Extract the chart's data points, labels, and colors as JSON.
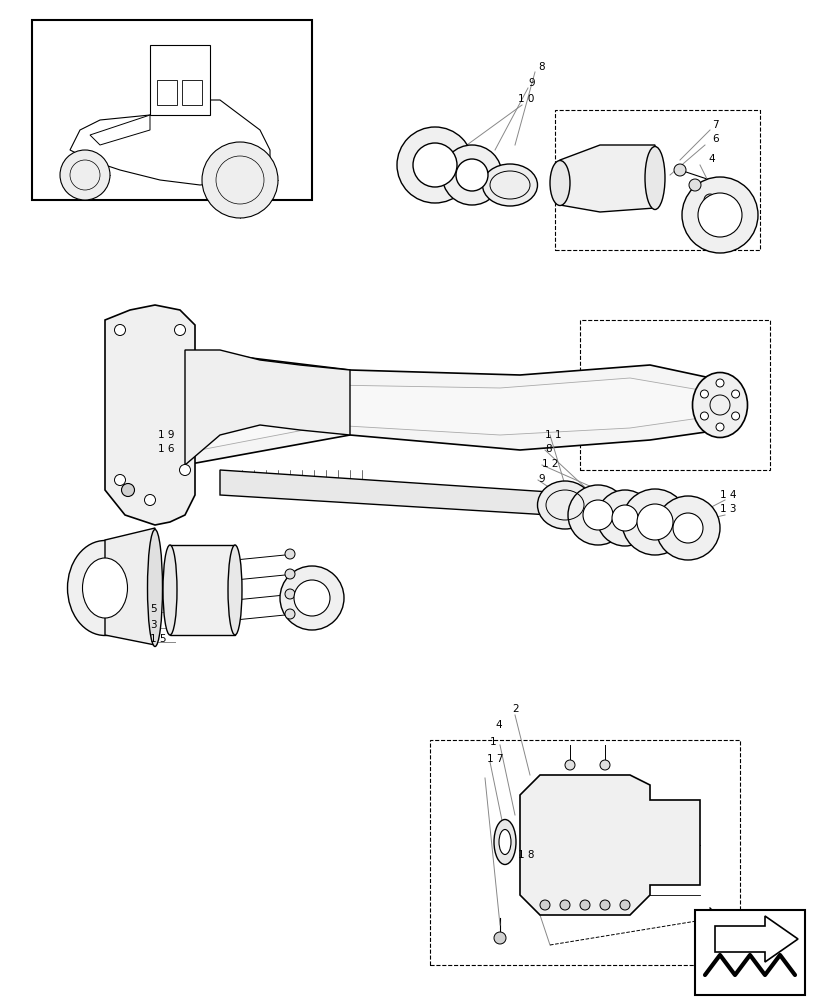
{
  "bg_color": "#ffffff",
  "line_color": "#000000",
  "light_gray": "#aaaaaa",
  "medium_gray": "#888888",
  "dark_gray": "#555555",
  "figsize": [
    8.28,
    10.0
  ],
  "dpi": 100
}
